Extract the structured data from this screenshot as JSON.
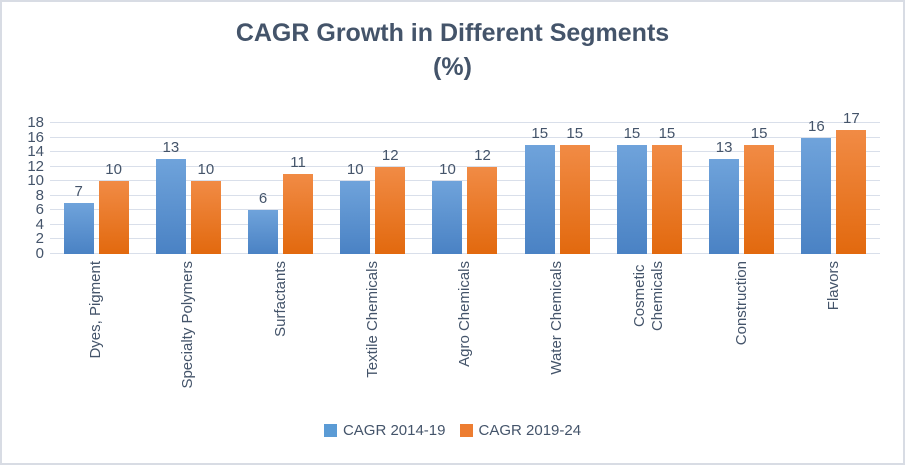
{
  "window": {
    "background_color": "#FFFFFF",
    "border_color": "#D8DCE4"
  },
  "chart_data": {
    "type": "bar",
    "title": "CAGR Growth in Different Segments",
    "title_line2": "(%)",
    "categories": [
      "Dyes, Pigment",
      "Specialty Polymers",
      "Surfactants",
      "Textile Chemicals",
      "Agro Chemicals",
      "Water Chemicals",
      "Cosmetic\nChemicals",
      "Construction",
      "Flavors"
    ],
    "series": [
      {
        "name": "CAGR 2014-19",
        "values": [
          7,
          13,
          6,
          10,
          10,
          15,
          15,
          13,
          16
        ],
        "color": "#5B9BD5",
        "gradient_top": "#6FA3DB",
        "gradient_bottom": "#4A82C4"
      },
      {
        "name": "CAGR 2019-24",
        "values": [
          10,
          10,
          11,
          12,
          12,
          15,
          15,
          15,
          17
        ],
        "color": "#ED7D31",
        "gradient_top": "#F18B45",
        "gradient_bottom": "#E2690E"
      }
    ],
    "ylim": [
      0,
      18
    ],
    "ytick_step": 2,
    "yticks": [
      0,
      2,
      4,
      6,
      8,
      10,
      12,
      14,
      16,
      18
    ],
    "grid": true,
    "data_labels": true,
    "legend_position": "bottom",
    "title_color": "#44546A",
    "text_color": "#44546A",
    "gridline_color": "#D9DFEA"
  }
}
